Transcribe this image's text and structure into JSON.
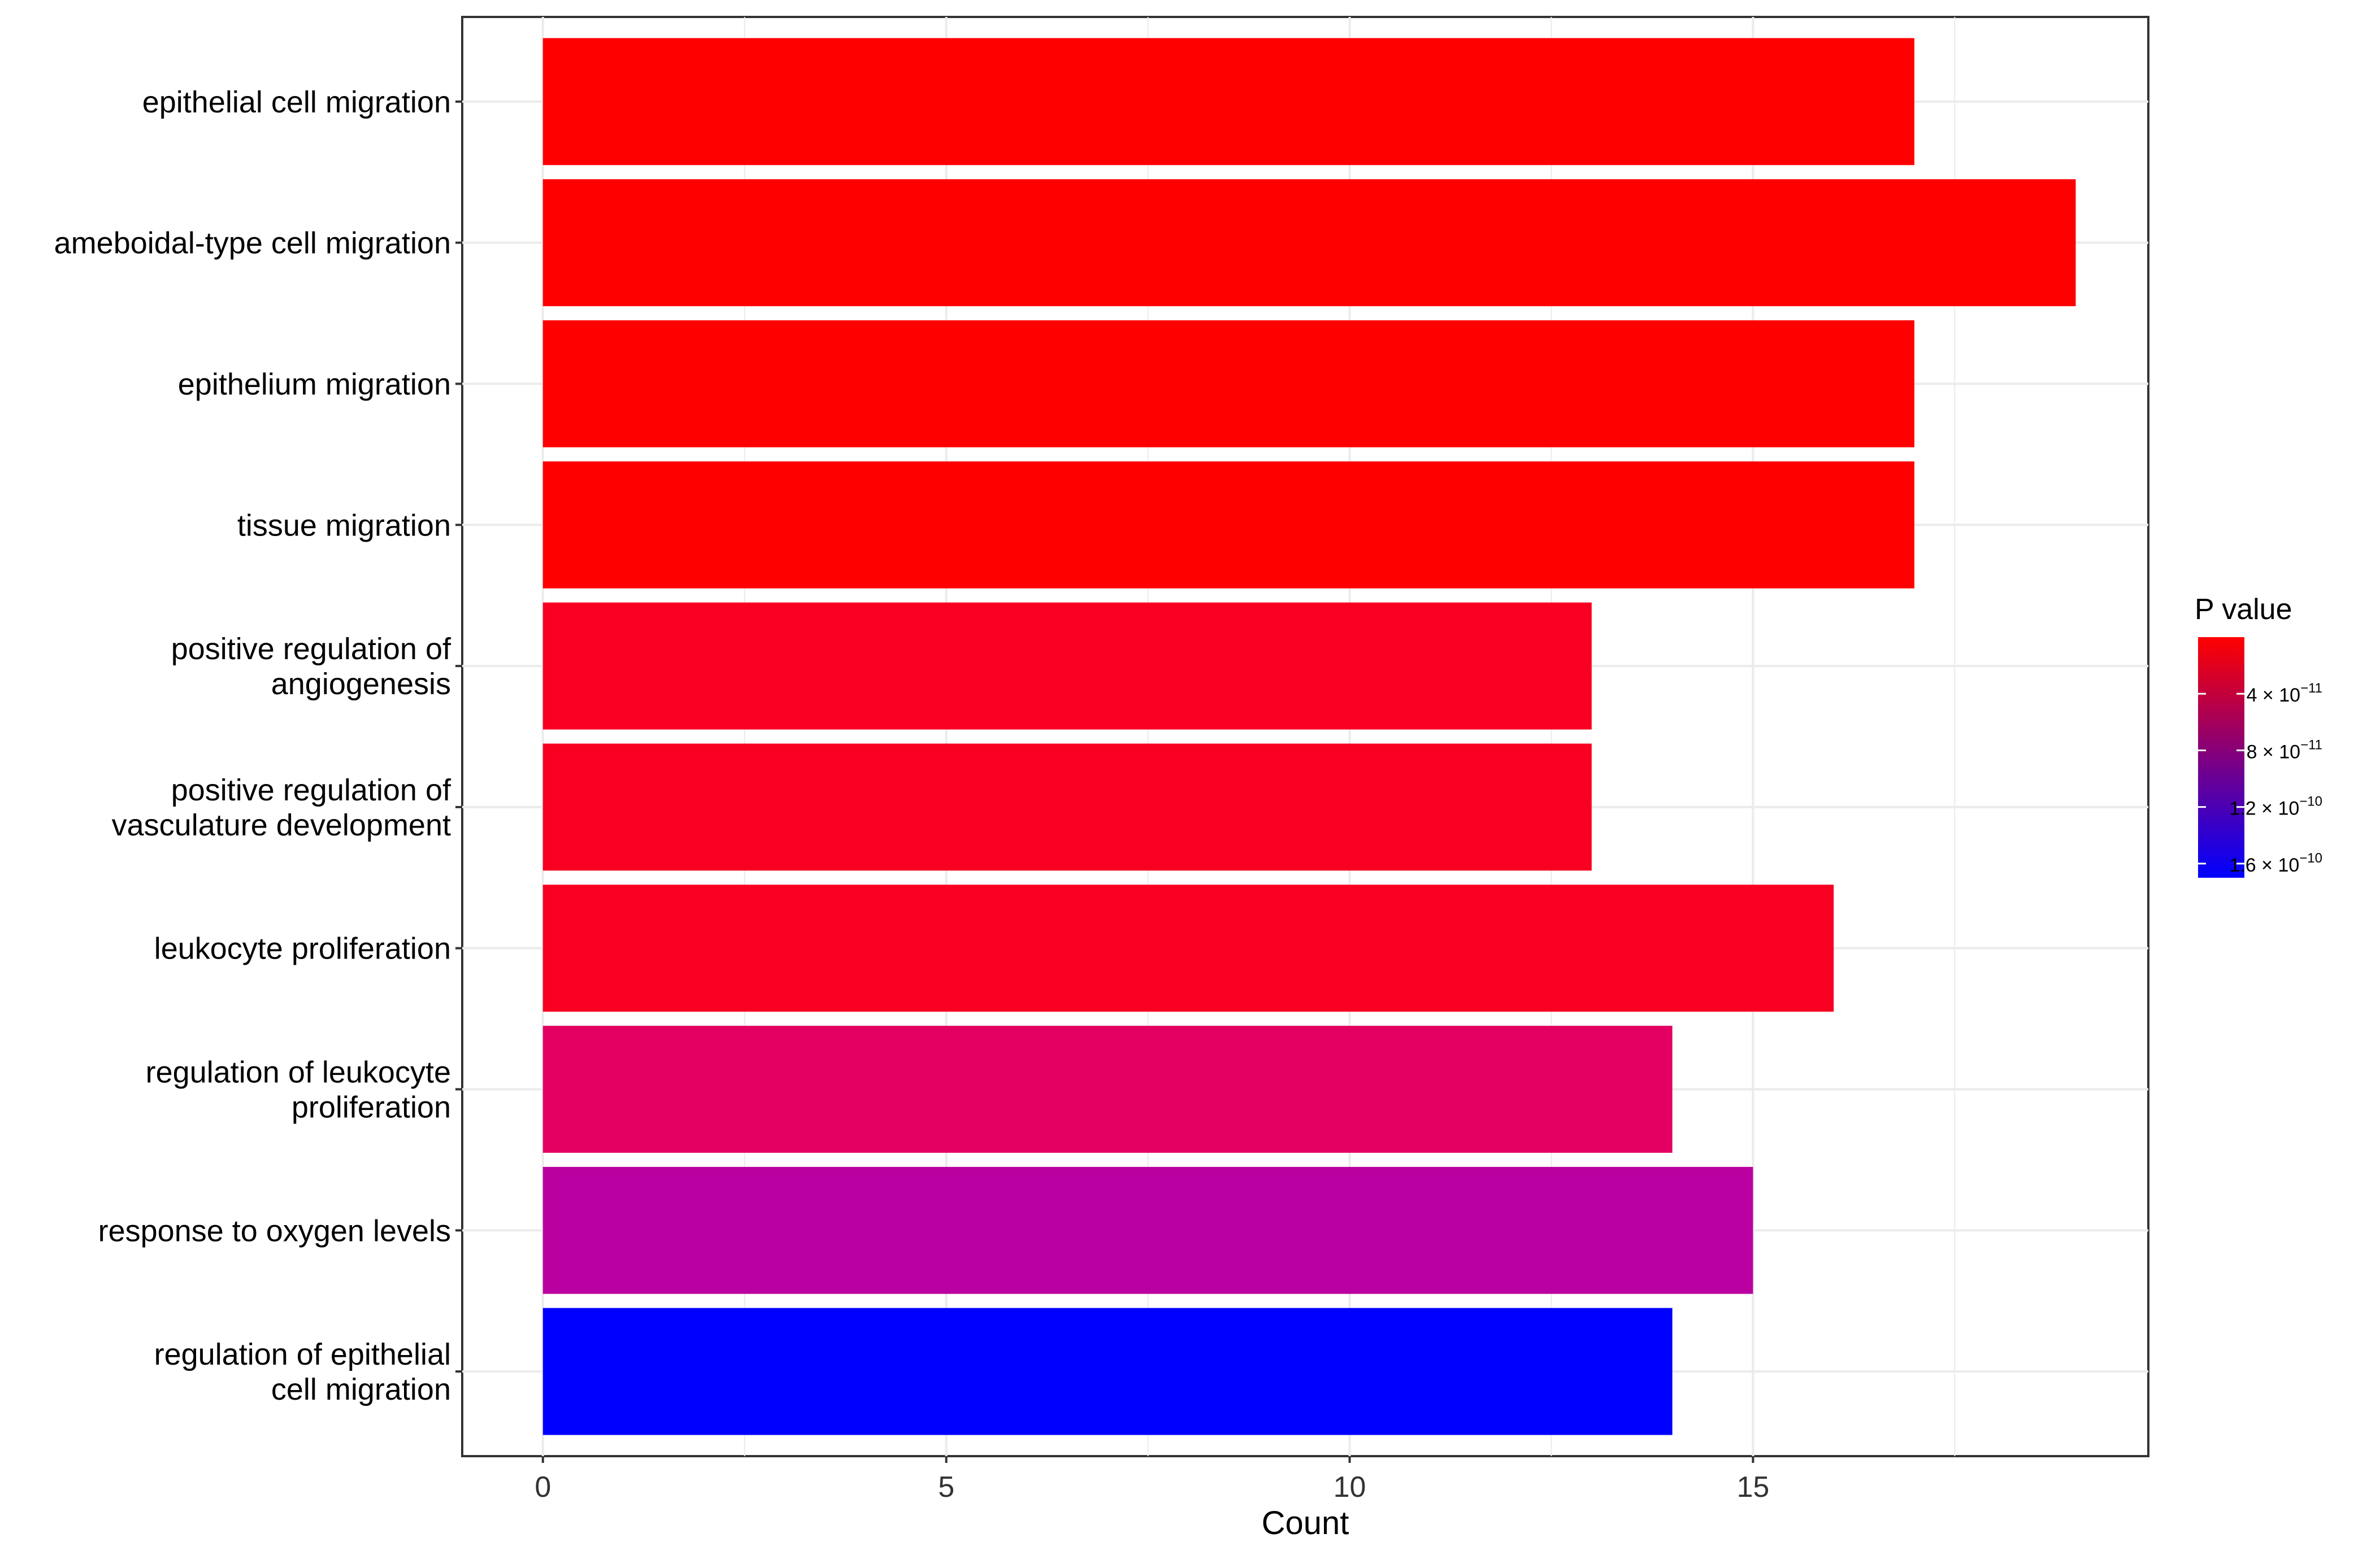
{
  "chart_data": {
    "type": "bar",
    "orientation": "horizontal",
    "title": "",
    "xlabel": "Count",
    "ylabel": "",
    "xlim": [
      -1,
      19.9
    ],
    "x_ticks": [
      0,
      5,
      10,
      15
    ],
    "grid": true,
    "legend_placement": "right",
    "categories": [
      "epithelial cell migration",
      "ameboidal-type cell migration",
      "epithelium migration",
      "tissue migration",
      "positive regulation of\nangiogenesis",
      "positive regulation of\nvasculature development",
      "leukocyte proliferation",
      "regulation of leukocyte\nproliferation",
      "response to oxygen levels",
      "regulation of epithelial\ncell migration"
    ],
    "values": [
      17,
      19,
      17,
      17,
      13,
      13,
      16,
      14,
      15,
      14
    ],
    "p_values": [
      1e-12,
      1e-12,
      1e-12,
      1.2e-12,
      1.2e-11,
      1.2e-11,
      1.5e-11,
      3.6e-11,
      9.6e-11,
      1.68e-10
    ],
    "colors": [
      "#ff0000",
      "#ff0000",
      "#ff0000",
      "#ff0000",
      "#f70021",
      "#f70021",
      "#f70021",
      "#e30062",
      "#bb00a1",
      "#0000ff"
    ],
    "legend": {
      "title": "P value",
      "range": [
        0,
        1.7e-10
      ],
      "low_color": "#ff0000",
      "high_color": "#0000ff",
      "ticks": [
        {
          "value": 4e-11,
          "mantissa": "4",
          "exponent": "−11"
        },
        {
          "value": 8e-11,
          "mantissa": "8",
          "exponent": "−11"
        },
        {
          "value": 1.2e-10,
          "mantissa": "1.2",
          "exponent": "−10"
        },
        {
          "value": 1.6e-10,
          "mantissa": "1.6",
          "exponent": "−10"
        }
      ]
    }
  }
}
